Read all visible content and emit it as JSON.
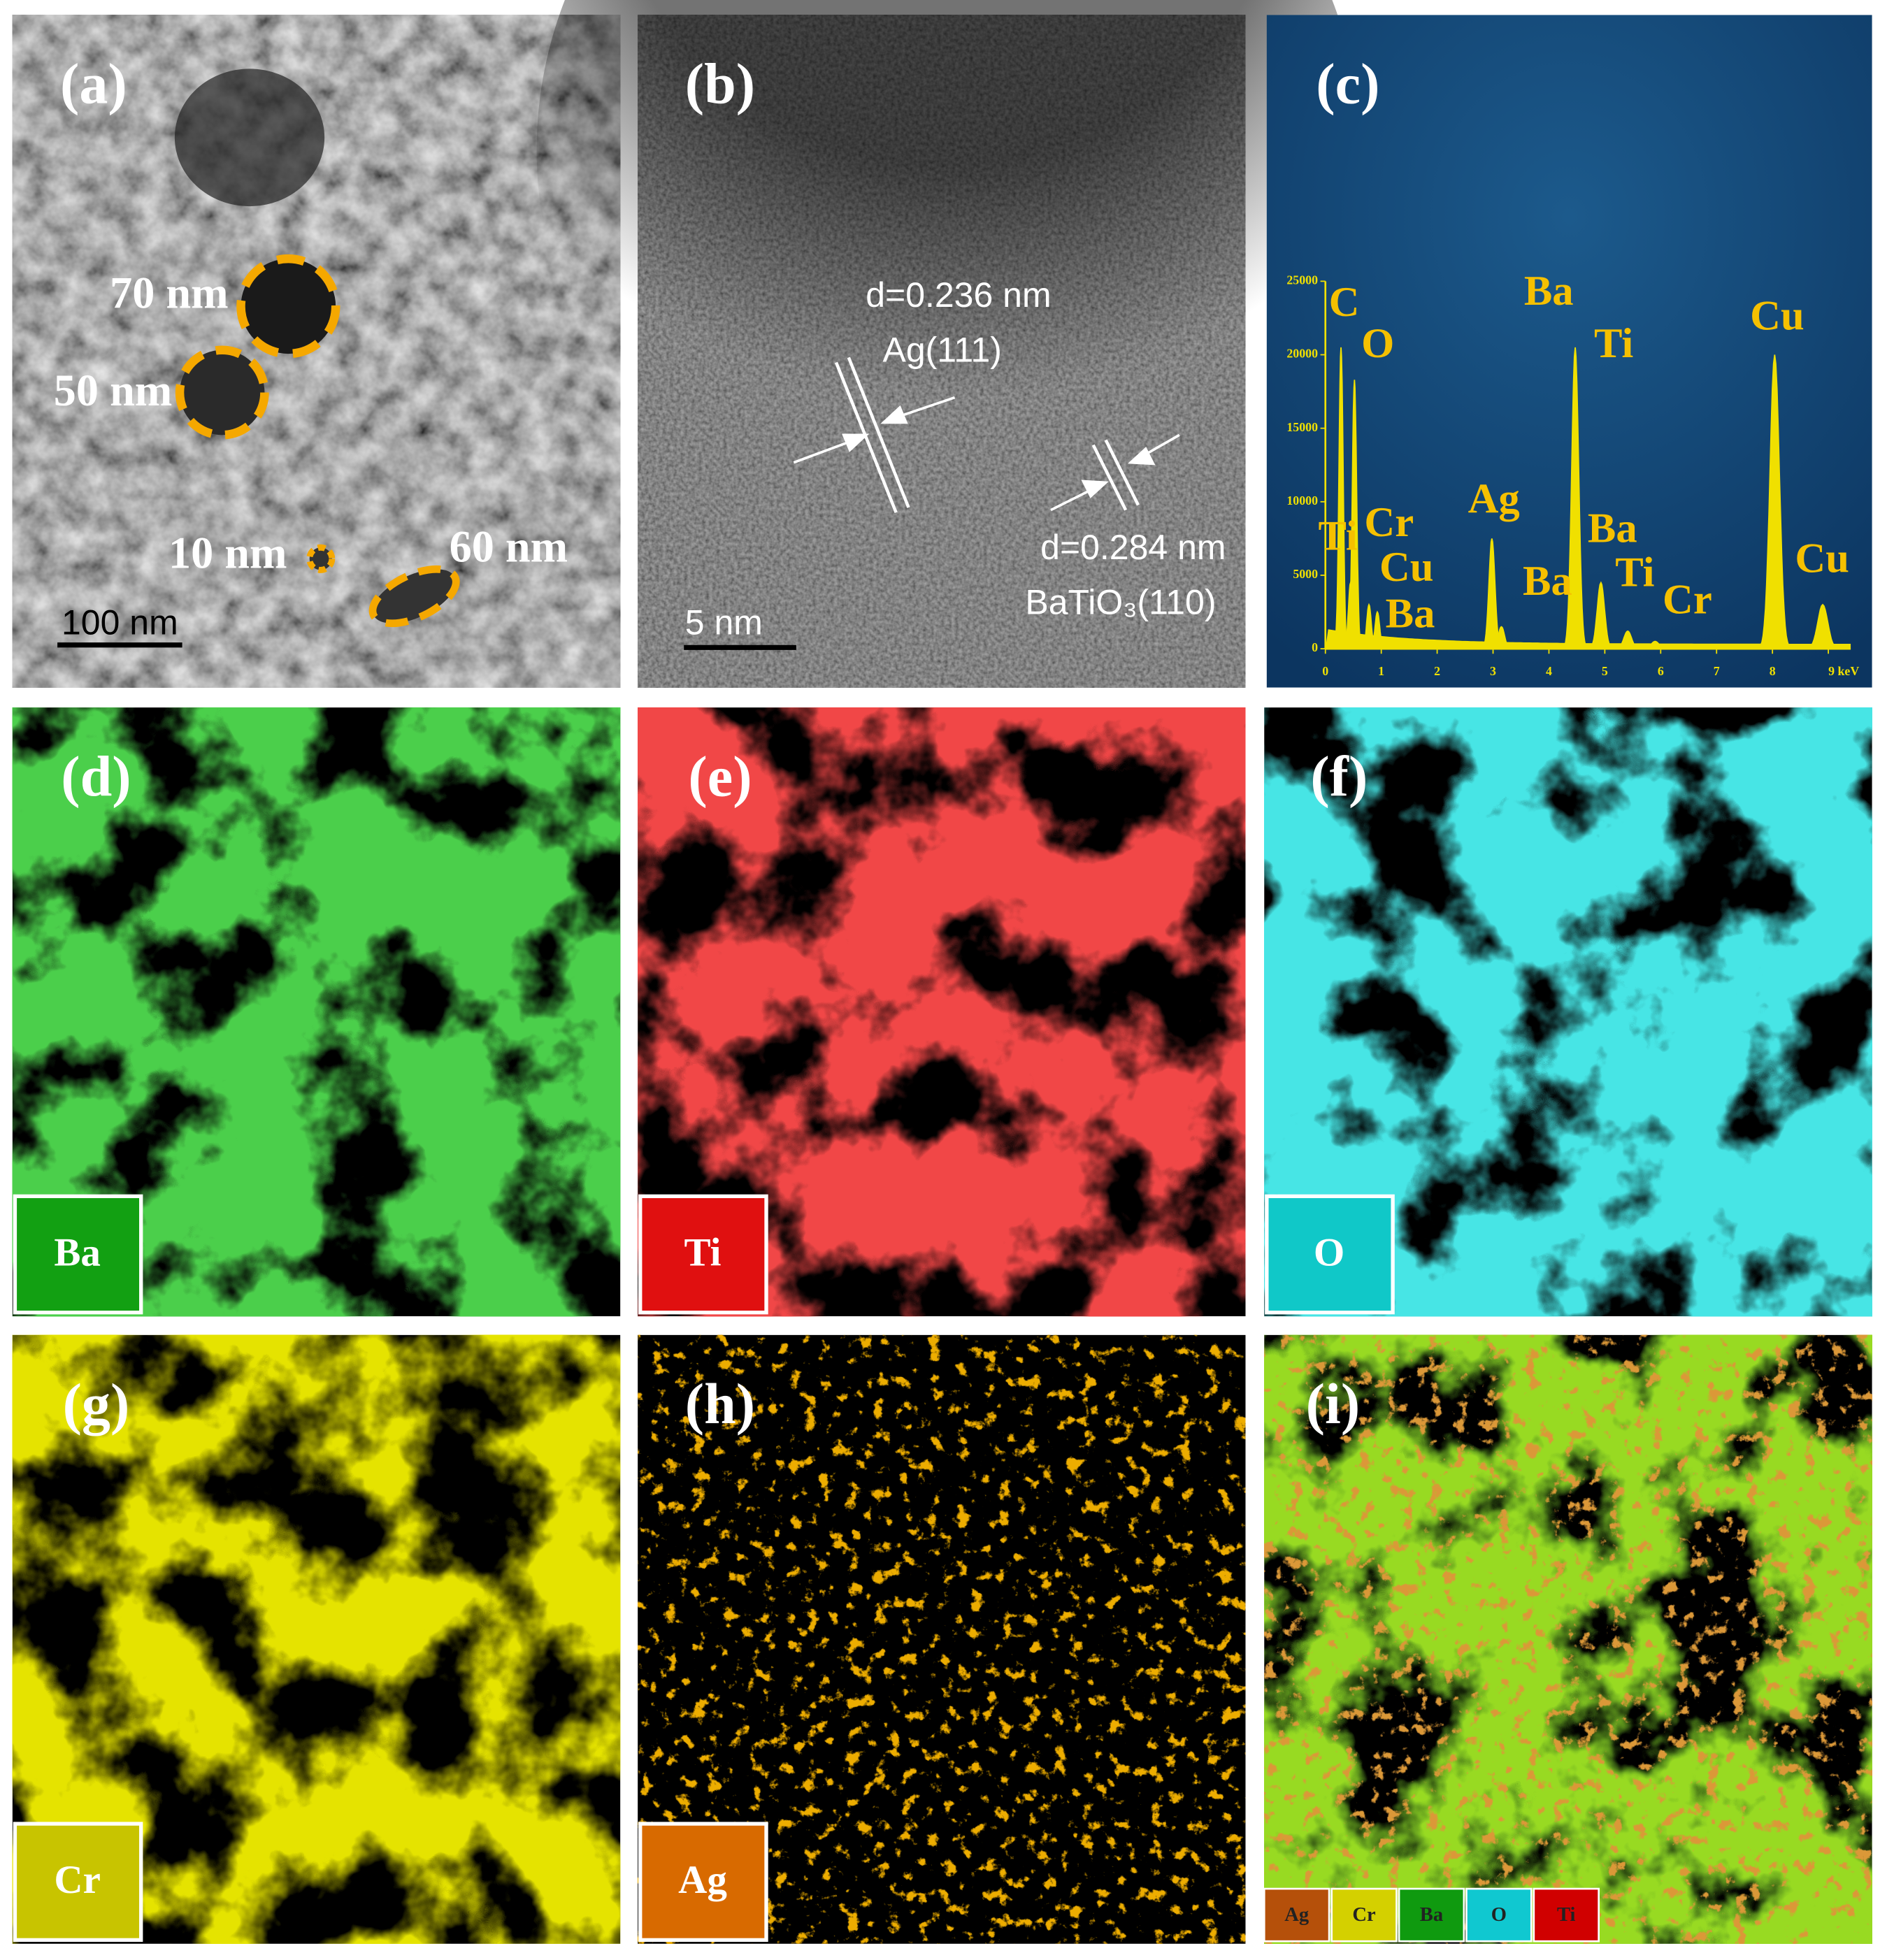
{
  "panels": [
    {
      "label": "(a)",
      "annotations": [
        "70 nm",
        "50 nm",
        "10 nm",
        "60 nm"
      ],
      "scale_bar": "100 nm"
    },
    {
      "label": "(b)",
      "annotations": [
        "d=0.236 nm",
        "Ag(111)",
        "d=0.284 nm",
        "BaTiO₃(110)"
      ],
      "scale_bar": "5 nm"
    },
    {
      "label": "(c)",
      "chart_data": {
        "type": "line",
        "color": "#f0e000",
        "label_color": "#f5c000",
        "xlim": [
          0,
          9.4
        ],
        "ylim": [
          0,
          25000
        ],
        "xticks": [
          0,
          1,
          2,
          3,
          4,
          5,
          6,
          7,
          8,
          {
            "value": 9,
            "label": "9 keV"
          }
        ],
        "yticks": [
          0,
          5000,
          10000,
          15000,
          20000,
          25000
        ],
        "x": [
          0.28,
          0.45,
          0.52,
          0.78,
          0.93,
          2.98,
          3.15,
          4.47,
          4.93,
          5.41,
          5.9,
          8.04,
          8.9
        ],
        "values": [
          20500,
          4500,
          18300,
          3000,
          2500,
          7500,
          1500,
          20500,
          4500,
          1200,
          500,
          20000,
          3000
        ],
        "peak_labels": [
          "C",
          "O",
          "Ti",
          "Cr",
          "Cu",
          "Ba",
          "Ag",
          "Ba",
          "Ti",
          "Ba",
          "Ti",
          "Ba",
          "Cr",
          "Cu",
          "Cu"
        ]
      }
    },
    {
      "label": "(d)",
      "element": "Ba",
      "color": "#12a012"
    },
    {
      "label": "(e)",
      "element": "Ti",
      "color": "#e01010"
    },
    {
      "label": "(f)",
      "element": "O",
      "color": "#10c8c8"
    },
    {
      "label": "(g)",
      "element": "Cr",
      "color": "#c8c400"
    },
    {
      "label": "(h)",
      "element": "Ag",
      "color": "#d86a00"
    },
    {
      "label": "(i)",
      "legend": [
        {
          "name": "Ag",
          "color": "#b5500a"
        },
        {
          "name": "Cr",
          "color": "#d4d000"
        },
        {
          "name": "Ba",
          "color": "#0f9a0f"
        },
        {
          "name": "O",
          "color": "#10c8d0"
        },
        {
          "name": "Ti",
          "color": "#d00000"
        }
      ]
    }
  ]
}
